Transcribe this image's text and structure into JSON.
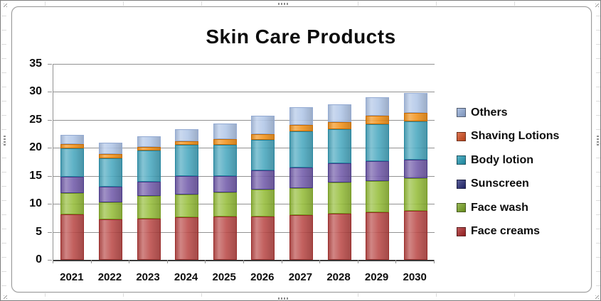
{
  "chart_data": {
    "type": "bar",
    "stacked": true,
    "title": "Skin Care Products",
    "categories": [
      "2021",
      "2022",
      "2023",
      "2024",
      "2025",
      "2026",
      "2027",
      "2028",
      "2029",
      "2030"
    ],
    "series": [
      {
        "name": "Face creams",
        "fill": "#B6403E",
        "border": "#992B29",
        "swatch": "#A82123",
        "values": [
          8.1,
          7.2,
          7.3,
          7.6,
          7.8,
          7.7,
          8.0,
          8.3,
          8.5,
          8.7
        ]
      },
      {
        "name": "Face wash",
        "fill": "#8FB92F",
        "border": "#74991F",
        "swatch": "#76A21F",
        "values": [
          3.8,
          3.1,
          4.1,
          4.1,
          4.2,
          4.9,
          4.8,
          5.5,
          5.6,
          5.9
        ]
      },
      {
        "name": "Sunscreen",
        "fill": "#6A52A5",
        "border": "#473A8A",
        "swatch": "#232874",
        "values": [
          2.9,
          2.8,
          2.6,
          3.3,
          3.0,
          3.4,
          3.7,
          3.4,
          3.5,
          3.3
        ]
      },
      {
        "name": "Body lotion",
        "fill": "#3FA3BC",
        "border": "#23859E",
        "swatch": "#2099B4",
        "values": [
          5.1,
          5.0,
          5.5,
          5.5,
          5.6,
          5.5,
          6.4,
          6.1,
          6.6,
          6.8
        ]
      },
      {
        "name": "Shaving Lotions",
        "fill": "#F08B0B",
        "border": "#C96C02",
        "swatch": "#D2491A",
        "values": [
          0.8,
          0.8,
          0.7,
          0.7,
          1.0,
          1.0,
          1.2,
          1.3,
          1.5,
          1.6
        ]
      },
      {
        "name": "Others",
        "fill": "#ACC3E6",
        "border": "#93AAD2",
        "swatch": "#92ACD8",
        "values": [
          1.6,
          2.0,
          1.9,
          2.1,
          2.8,
          3.2,
          3.2,
          3.2,
          3.4,
          3.5
        ]
      }
    ],
    "legend_order": [
      "Others",
      "Shaving Lotions",
      "Body lotion",
      "Sunscreen",
      "Face wash",
      "Face creams"
    ],
    "legend_position": "right",
    "xlabel": "",
    "ylabel": "",
    "ylim": [
      0,
      35
    ],
    "ytick_step": 5,
    "yticks": [
      "0",
      "5",
      "10",
      "15",
      "20",
      "25",
      "30",
      "35"
    ],
    "grid": true
  }
}
